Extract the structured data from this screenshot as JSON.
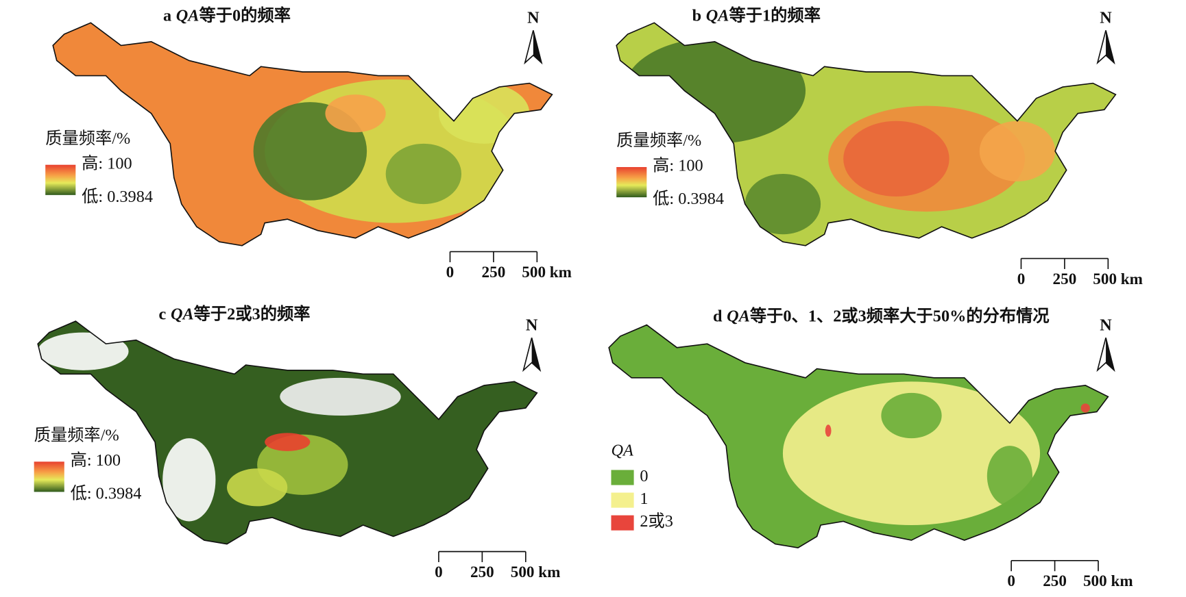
{
  "panels": [
    {
      "label": "a",
      "italic": "QA",
      "title": "等于0的频率",
      "north": "N",
      "legend": {
        "title": "质量频率/%",
        "high": "高: 100",
        "low": "低: 0.3984"
      },
      "scale": [
        "0",
        "250",
        "500 km"
      ]
    },
    {
      "label": "b",
      "italic": "QA",
      "title": "等于1的频率",
      "north": "N",
      "legend": {
        "title": "质量频率/%",
        "high": "高: 100",
        "low": "低: 0.3984"
      },
      "scale": [
        "0",
        "250",
        "500 km"
      ]
    },
    {
      "label": "c",
      "italic": "QA",
      "title": "等于2或3的频率",
      "north": "N",
      "legend": {
        "title": "质量频率/%",
        "high": "高: 100",
        "low": "低: 0.3984"
      },
      "scale": [
        "0",
        "250",
        "500 km"
      ]
    },
    {
      "label": "d",
      "italic": "QA",
      "title": "等于0、1、2或3频率大于50%的分布情况",
      "north": "N",
      "legend": {
        "title": "QA",
        "items": [
          {
            "label": "0",
            "color": "#6aae3a"
          },
          {
            "label": "1",
            "color": "#f4f08e"
          },
          {
            "label": "2或3",
            "color": "#e8453c"
          }
        ]
      },
      "scale": [
        "0",
        "250",
        "500 km"
      ]
    }
  ]
}
